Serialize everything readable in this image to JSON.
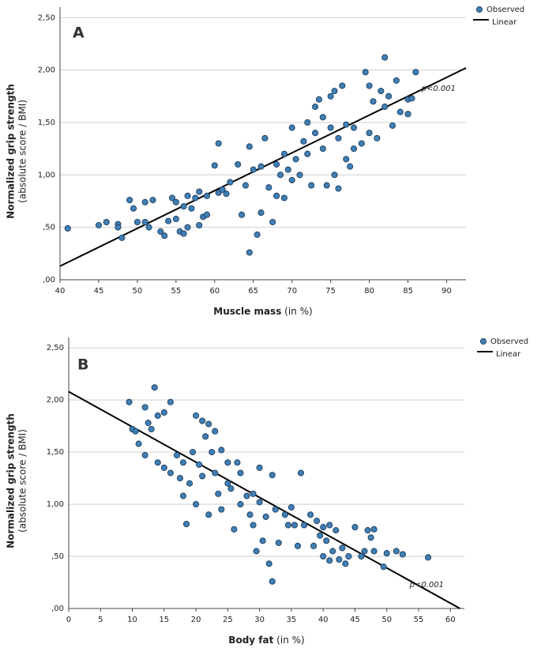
{
  "chart_data": [
    {
      "type": "scatter",
      "panel": "A",
      "y_label": {
        "main": "Normalized grip strength",
        "sub": "(absolute score / BMI)"
      },
      "x_label": {
        "main": "Muscle mass",
        "unit": "(in %)"
      },
      "annotation": "p<0.001",
      "xlim": [
        40,
        92.5
      ],
      "ylim": [
        0,
        2.6
      ],
      "xticks": [
        40,
        45,
        50,
        55,
        60,
        65,
        70,
        75,
        80,
        85,
        90
      ],
      "yticks": [
        {
          "value": 0,
          "label": ",00"
        },
        {
          "value": 0.5,
          "label": ",50"
        },
        {
          "value": 1,
          "label": "1,00"
        },
        {
          "value": 1.5,
          "label": "1,50"
        },
        {
          "value": 2,
          "label": "2,00"
        },
        {
          "value": 2.5,
          "label": "2,50"
        }
      ],
      "grid": true,
      "legend": "top-right",
      "series": [
        {
          "name": "Observed",
          "color": "#3f7fb5",
          "x": [
            41,
            45,
            46,
            47.5,
            47.5,
            48,
            49,
            49.5,
            50,
            51,
            51,
            51.5,
            52,
            53,
            53.5,
            54,
            54.5,
            55,
            55,
            55.5,
            56,
            56,
            56.5,
            56.5,
            57,
            57.5,
            58,
            58,
            58.5,
            59,
            59,
            60,
            60.5,
            60.5,
            61,
            61.5,
            62,
            63,
            63.5,
            64,
            64.5,
            64.5,
            65,
            65.5,
            66,
            66,
            66.5,
            67,
            67.5,
            68,
            68,
            68.5,
            69,
            69,
            69.5,
            70,
            70,
            70.5,
            71,
            71.5,
            72,
            72,
            72.5,
            73,
            73,
            73.5,
            74,
            74,
            74.5,
            75,
            75,
            75.5,
            75.5,
            76,
            76,
            76.5,
            77,
            77,
            77.5,
            78,
            78,
            79,
            79.5,
            80,
            80,
            80.5,
            81,
            81.5,
            82,
            82,
            82.5,
            83,
            83.5,
            84,
            85,
            85,
            86,
            85.5
          ],
          "y": [
            0.49,
            0.52,
            0.55,
            0.53,
            0.5,
            0.4,
            0.76,
            0.68,
            0.55,
            0.74,
            0.55,
            0.5,
            0.76,
            0.46,
            0.42,
            0.56,
            0.78,
            0.74,
            0.58,
            0.46,
            0.44,
            0.7,
            0.8,
            0.5,
            0.68,
            0.78,
            0.84,
            0.52,
            0.6,
            0.8,
            0.62,
            1.09,
            1.3,
            0.83,
            0.86,
            0.82,
            0.93,
            1.1,
            0.62,
            0.9,
            1.27,
            0.26,
            1.05,
            0.43,
            1.08,
            0.64,
            1.35,
            0.88,
            0.55,
            1.1,
            0.8,
            1.0,
            1.2,
            0.78,
            1.05,
            1.45,
            0.95,
            1.15,
            1.0,
            1.32,
            1.5,
            1.2,
            0.9,
            1.65,
            1.4,
            1.72,
            1.55,
            1.25,
            0.9,
            1.75,
            1.45,
            1.8,
            1.0,
            1.35,
            0.87,
            1.85,
            1.48,
            1.15,
            1.08,
            1.45,
            1.25,
            1.3,
            1.98,
            1.85,
            1.4,
            1.7,
            1.35,
            1.8,
            2.12,
            1.65,
            1.75,
            1.47,
            1.9,
            1.6,
            1.72,
            1.58,
            1.98,
            1.73
          ]
        }
      ],
      "fit": {
        "name": "Linear",
        "color": "#000000",
        "x": [
          40,
          92.5
        ],
        "y": [
          0.13,
          2.02
        ]
      }
    },
    {
      "type": "scatter",
      "panel": "B",
      "y_label": {
        "main": "Normalized grip strength",
        "sub": "(absolute score / BMI)"
      },
      "x_label": {
        "main": "Body fat",
        "unit": "(in %)"
      },
      "annotation": "p<0.001",
      "xlim": [
        0,
        62.2
      ],
      "ylim": [
        0,
        2.6
      ],
      "xticks": [
        0,
        5,
        10,
        15,
        20,
        25,
        30,
        35,
        40,
        45,
        50,
        55,
        60
      ],
      "yticks": [
        {
          "value": 0,
          "label": ",00"
        },
        {
          "value": 0.5,
          "label": ",50"
        },
        {
          "value": 1,
          "label": "1,00"
        },
        {
          "value": 1.5,
          "label": "1,50"
        },
        {
          "value": 2,
          "label": "2,00"
        },
        {
          "value": 2.5,
          "label": "2,50"
        }
      ],
      "grid": true,
      "legend": "top-right",
      "series": [
        {
          "name": "Observed",
          "color": "#3f7fb5",
          "x": [
            9.5,
            10,
            10.5,
            11,
            12,
            12.5,
            12,
            13,
            13.5,
            14,
            14,
            15,
            15,
            16,
            16,
            17,
            17.5,
            18,
            18,
            18.5,
            19,
            19.5,
            20,
            20,
            20.5,
            21,
            21,
            21.5,
            22,
            22,
            22.5,
            23,
            23,
            23.5,
            24,
            24,
            25,
            25,
            25.5,
            26,
            26.5,
            27,
            27,
            28,
            28.5,
            29,
            29,
            29.5,
            30,
            30,
            30.5,
            31,
            31.5,
            32,
            32,
            32.5,
            33,
            34,
            34.5,
            35,
            35.5,
            36,
            36.5,
            37,
            38,
            38.5,
            39,
            39.5,
            40,
            40,
            40.5,
            41,
            41,
            41.5,
            42,
            42.5,
            43,
            43.5,
            44,
            45,
            46,
            46.5,
            47,
            47.5,
            48,
            48,
            49.5,
            50,
            51.5,
            52.5,
            56.5
          ],
          "y": [
            1.98,
            1.72,
            1.7,
            1.58,
            1.93,
            1.78,
            1.47,
            1.72,
            2.12,
            1.4,
            1.85,
            1.88,
            1.35,
            1.98,
            1.3,
            1.47,
            1.25,
            1.4,
            1.08,
            0.81,
            1.2,
            1.5,
            1.85,
            1.0,
            1.38,
            1.8,
            1.27,
            1.65,
            1.77,
            0.9,
            1.5,
            1.7,
            1.3,
            1.1,
            1.52,
            0.95,
            1.4,
            1.2,
            1.15,
            0.76,
            1.4,
            1.3,
            1.0,
            1.08,
            0.9,
            0.8,
            1.1,
            0.55,
            1.35,
            1.02,
            0.65,
            0.88,
            0.43,
            1.28,
            0.26,
            0.95,
            0.63,
            0.9,
            0.8,
            0.97,
            0.8,
            0.6,
            1.3,
            0.8,
            0.9,
            0.6,
            0.84,
            0.7,
            0.78,
            0.5,
            0.65,
            0.8,
            0.46,
            0.55,
            0.75,
            0.47,
            0.58,
            0.43,
            0.5,
            0.78,
            0.5,
            0.55,
            0.75,
            0.68,
            0.55,
            0.76,
            0.4,
            0.53,
            0.55,
            0.52,
            0.49
          ]
        }
      ],
      "fit": {
        "name": "Linear",
        "color": "#000000",
        "x": [
          0,
          61.5
        ],
        "y": [
          2.08,
          0
        ]
      }
    }
  ]
}
